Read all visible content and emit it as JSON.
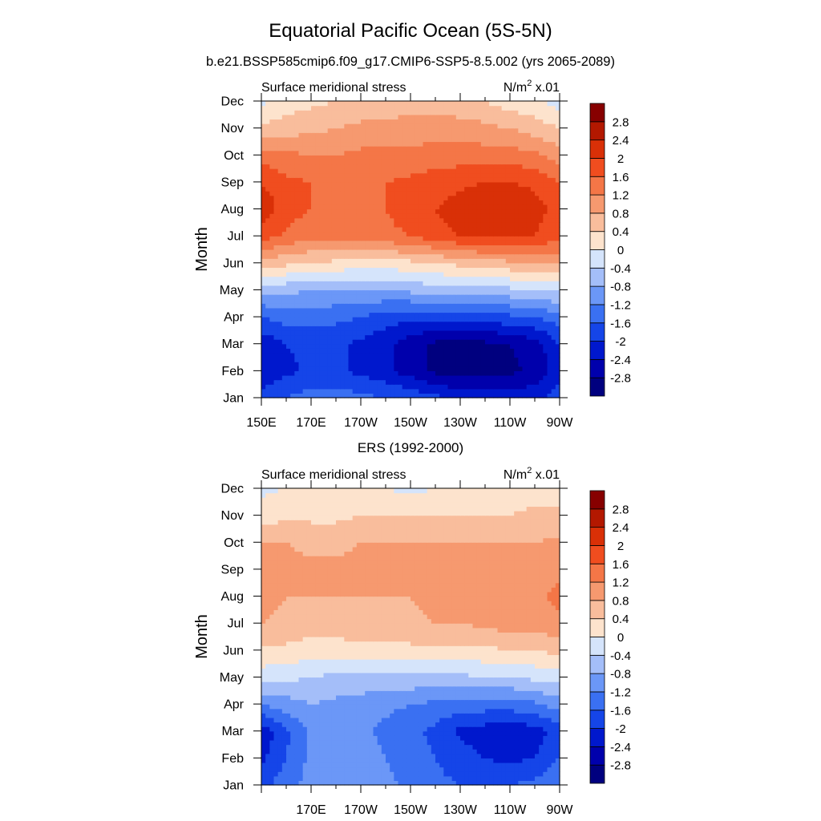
{
  "title": "Equatorial Pacific Ocean (5S-5N)",
  "subtitle": "b.e21.BSSP585cmip6.f09_g17.CMIP6-SSP5-8.5.002 (yrs 2065-2089)",
  "colors": {
    "scale": [
      "#00007f",
      "#0000ac",
      "#0018cd",
      "#1545e8",
      "#3a70f2",
      "#6b97f7",
      "#a4bef9",
      "#d5e4fb",
      "#fde3cd",
      "#f9bd9c",
      "#f6996f",
      "#f47647",
      "#f04d1f",
      "#d93007",
      "#b31800",
      "#870000"
    ]
  },
  "chart_data": [
    {
      "type": "heatmap",
      "title": "",
      "panel_label": "Surface meridional stress",
      "units_prefix": "N/m",
      "units_sup": "2",
      "units_suffix": " x.01",
      "xlabel": "",
      "ylabel": "Month",
      "xticks": [
        "150E",
        "170E",
        "170W",
        "150W",
        "130W",
        "110W",
        "90W"
      ],
      "yticks": [
        "Jan",
        "Feb",
        "Mar",
        "Apr",
        "May",
        "Jun",
        "Jul",
        "Aug",
        "Sep",
        "Oct",
        "Nov",
        "Dec"
      ],
      "levels": [
        -2.8,
        -2.4,
        -2,
        -1.6,
        -1.2,
        -0.8,
        -0.4,
        0,
        0.4,
        0.8,
        1.2,
        1.6,
        2,
        2.4,
        2.8
      ],
      "x": [
        150,
        160,
        170,
        180,
        190,
        200,
        210,
        220,
        230,
        240,
        250,
        260,
        270
      ],
      "y": [
        "Jan",
        "Feb",
        "Mar",
        "Apr",
        "May",
        "Jun",
        "Jul",
        "Aug",
        "Sep",
        "Oct",
        "Nov",
        "Dec"
      ],
      "values": [
        [
          -1.8,
          -1.6,
          -1.4,
          -1.4,
          -1.5,
          -1.6,
          -1.7,
          -1.9,
          -2.1,
          -2.2,
          -2.2,
          -2.1,
          -1.8
        ],
        [
          -2.4,
          -2.1,
          -1.9,
          -1.9,
          -2.1,
          -2.3,
          -2.6,
          -2.9,
          -3.0,
          -3.0,
          -2.9,
          -2.7,
          -2.2
        ],
        [
          -2.3,
          -2.0,
          -1.9,
          -1.9,
          -2.1,
          -2.3,
          -2.6,
          -2.9,
          -3.0,
          -2.9,
          -2.8,
          -2.6,
          -2.0
        ],
        [
          -1.6,
          -1.4,
          -1.4,
          -1.5,
          -1.6,
          -1.8,
          -1.9,
          -1.9,
          -1.9,
          -1.8,
          -1.7,
          -1.6,
          -1.4
        ],
        [
          -0.7,
          -0.7,
          -0.8,
          -0.8,
          -0.8,
          -0.8,
          -0.7,
          -0.6,
          -0.6,
          -0.6,
          -0.5,
          -0.4,
          -0.3
        ],
        [
          0.6,
          0.5,
          0.4,
          0.3,
          0.2,
          0.2,
          0.3,
          0.4,
          0.5,
          0.6,
          0.7,
          0.8,
          0.9
        ],
        [
          1.8,
          1.5,
          1.3,
          1.3,
          1.4,
          1.5,
          1.6,
          1.8,
          2.0,
          2.1,
          2.1,
          2.0,
          1.7
        ],
        [
          2.3,
          1.8,
          1.6,
          1.5,
          1.5,
          1.6,
          1.8,
          2.0,
          2.2,
          2.3,
          2.3,
          2.2,
          1.8
        ],
        [
          2.0,
          1.7,
          1.6,
          1.5,
          1.5,
          1.6,
          1.7,
          1.8,
          1.9,
          2.0,
          2.0,
          1.9,
          1.6
        ],
        [
          1.4,
          1.3,
          1.2,
          1.2,
          1.3,
          1.3,
          1.3,
          1.4,
          1.4,
          1.4,
          1.4,
          1.3,
          1.0
        ],
        [
          0.5,
          0.6,
          0.7,
          0.8,
          0.9,
          0.9,
          1.0,
          1.0,
          1.0,
          0.9,
          0.8,
          0.6,
          0.4
        ],
        [
          -0.1,
          0.2,
          0.3,
          0.4,
          0.5,
          0.6,
          0.6,
          0.6,
          0.5,
          0.4,
          0.2,
          0.1,
          -0.2
        ]
      ]
    },
    {
      "type": "heatmap",
      "title": "ERS (1992-2000)",
      "panel_label": "Surface meridional stress",
      "units_prefix": "N/m",
      "units_sup": "2",
      "units_suffix": " x.01",
      "xlabel": "",
      "ylabel": "Month",
      "xticks": [
        "170E",
        "170W",
        "150W",
        "130W",
        "110W",
        "90W"
      ],
      "yticks": [
        "Jan",
        "Feb",
        "Mar",
        "Apr",
        "May",
        "Jun",
        "Jul",
        "Aug",
        "Sep",
        "Oct",
        "Nov",
        "Dec"
      ],
      "levels": [
        -2.8,
        -2.4,
        -2,
        -1.6,
        -1.2,
        -0.8,
        -0.4,
        0,
        0.4,
        0.8,
        1.2,
        1.6,
        2,
        2.4,
        2.8
      ],
      "x": [
        150,
        160,
        170,
        180,
        190,
        200,
        210,
        220,
        230,
        240,
        250,
        260,
        270
      ],
      "y": [
        "Jan",
        "Feb",
        "Mar",
        "Apr",
        "May",
        "Jun",
        "Jul",
        "Aug",
        "Sep",
        "Oct",
        "Nov",
        "Dec"
      ],
      "values": [
        [
          -1.7,
          -1.4,
          -1.0,
          -0.9,
          -0.9,
          -1.1,
          -1.3,
          -1.5,
          -1.6,
          -1.7,
          -1.6,
          -1.5,
          -1.2
        ],
        [
          -2.1,
          -1.6,
          -1.1,
          -1.0,
          -1.0,
          -1.2,
          -1.4,
          -1.6,
          -1.8,
          -2.0,
          -2.1,
          -2.0,
          -1.6
        ],
        [
          -2.3,
          -1.7,
          -1.1,
          -1.0,
          -1.1,
          -1.3,
          -1.5,
          -1.7,
          -2.1,
          -2.2,
          -2.3,
          -2.2,
          -1.8
        ],
        [
          -1.2,
          -1.0,
          -0.8,
          -0.9,
          -1.0,
          -1.1,
          -1.2,
          -1.3,
          -1.4,
          -1.4,
          -1.4,
          -1.3,
          -1.0
        ],
        [
          -0.2,
          -0.3,
          -0.4,
          -0.5,
          -0.5,
          -0.5,
          -0.5,
          -0.5,
          -0.5,
          -0.4,
          -0.4,
          -0.3,
          -0.2
        ],
        [
          0.3,
          0.3,
          0.2,
          0.2,
          0.3,
          0.3,
          0.3,
          0.3,
          0.3,
          0.3,
          0.4,
          0.4,
          0.5
        ],
        [
          0.8,
          0.7,
          0.6,
          0.6,
          0.7,
          0.7,
          0.7,
          0.8,
          0.8,
          0.9,
          1.0,
          1.0,
          1.1
        ],
        [
          0.9,
          0.8,
          0.8,
          0.8,
          0.8,
          0.8,
          0.8,
          0.9,
          0.9,
          0.9,
          1.0,
          1.1,
          1.3
        ],
        [
          1.0,
          0.9,
          0.9,
          0.9,
          0.9,
          0.9,
          0.9,
          0.9,
          0.9,
          0.9,
          1.0,
          1.0,
          1.1
        ],
        [
          0.8,
          0.8,
          0.7,
          0.7,
          0.8,
          0.8,
          0.8,
          0.8,
          0.8,
          0.8,
          0.8,
          0.8,
          0.9
        ],
        [
          0.2,
          0.3,
          0.3,
          0.3,
          0.4,
          0.4,
          0.4,
          0.4,
          0.4,
          0.4,
          0.4,
          0.5,
          0.5
        ],
        [
          -0.1,
          0.0,
          0.1,
          0.1,
          0.1,
          0.0,
          -0.1,
          0.0,
          0.1,
          0.1,
          0.2,
          0.2,
          0.1
        ]
      ]
    }
  ]
}
